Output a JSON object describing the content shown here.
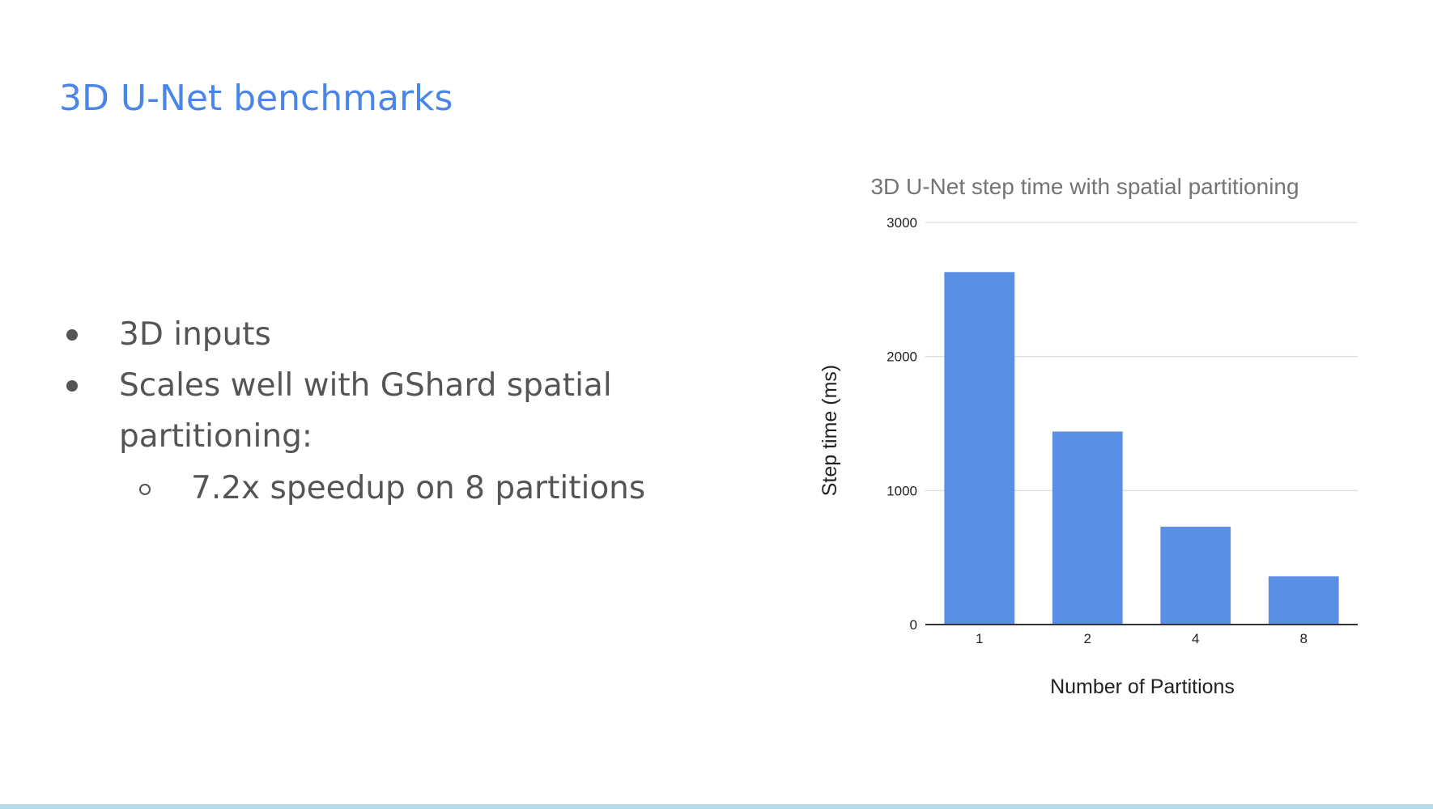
{
  "slide": {
    "title": "3D U-Net benchmarks",
    "bullets": [
      {
        "text": "3D inputs",
        "level": 1
      },
      {
        "text": "Scales well with GShard spatial",
        "text_cont": "partitioning:",
        "level": 1
      },
      {
        "text": "7.2x speedup on 8 partitions",
        "level": 2
      }
    ]
  },
  "colors": {
    "title": "#4a86e8",
    "bar": "#5b8fe6",
    "gridline": "#e0e0e0",
    "bullet_text": "#555555"
  },
  "chart_data": {
    "type": "bar",
    "title": "3D U-Net step time with spatial partitioning",
    "xlabel": "Number of Partitions",
    "ylabel": "Step time (ms)",
    "categories": [
      "1",
      "2",
      "4",
      "8"
    ],
    "values": [
      2630,
      1440,
      730,
      360
    ],
    "ylim": [
      0,
      3000
    ],
    "yticks": [
      0,
      1000,
      2000,
      3000
    ],
    "grid": true,
    "legend": "none"
  }
}
